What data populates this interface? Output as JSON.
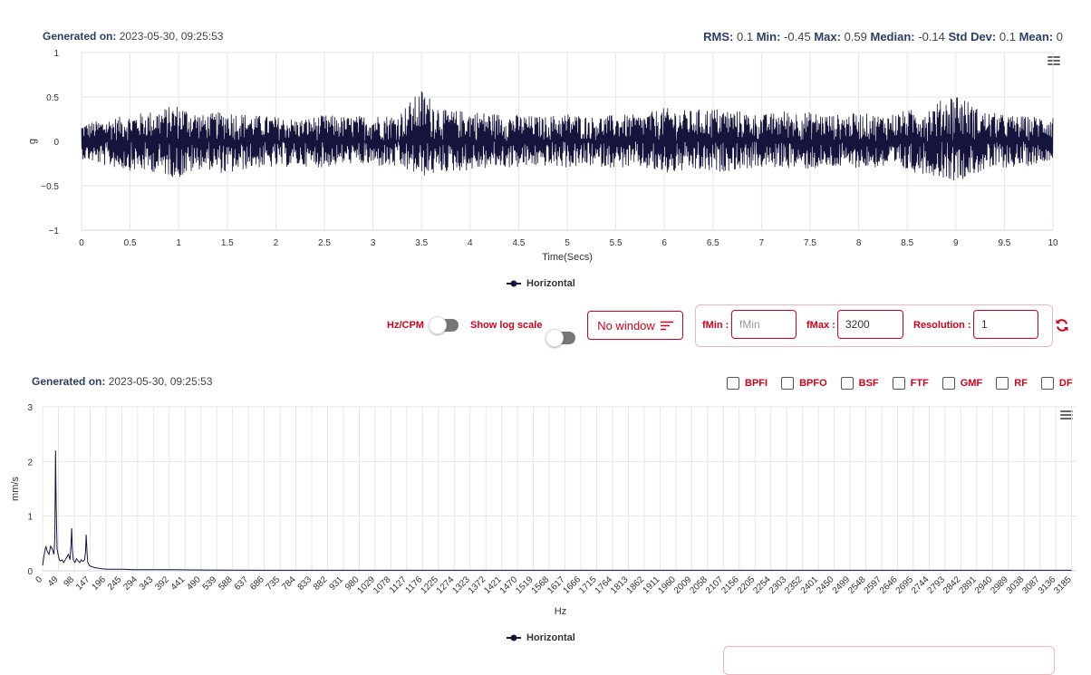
{
  "top": {
    "generated_label": "Generated on:",
    "generated_value": "2023-05-30, 09:25:53",
    "stats": [
      {
        "label": "RMS:",
        "value": "0.1"
      },
      {
        "label": "Min:",
        "value": "-0.45"
      },
      {
        "label": "Max:",
        "value": "0.59"
      },
      {
        "label": "Median:",
        "value": "-0.14"
      },
      {
        "label": "Std Dev:",
        "value": "0.1"
      },
      {
        "label": "Mean:",
        "value": "0"
      }
    ],
    "legend": "Horizontal"
  },
  "controls": {
    "hzcpm_label": "Hz/CPM",
    "log_label": "Show log scale",
    "window_label": "No window",
    "fmin_label": "fMin :",
    "fmin_value": "",
    "fmin_placeholder": "fMin",
    "fmax_label": "fMax :",
    "fmax_value": "3200",
    "resolution_label": "Resolution :",
    "resolution_value": "1"
  },
  "bottom": {
    "generated_label": "Generated on:",
    "generated_value": "2023-05-30, 09:25:53",
    "checkboxes": [
      "BPFI",
      "BPFO",
      "BSF",
      "FTF",
      "GMF",
      "RF",
      "DF"
    ],
    "legend": "Horizontal"
  },
  "colors": {
    "series": "#14143c",
    "accent": "#d0021b",
    "title": "#2c3e66",
    "grid": "#e6e6e6"
  },
  "icons": {
    "menu": "hamburger-menu-icon",
    "refresh": "refresh-icon",
    "window": "filter-lines-icon"
  },
  "chart_data": [
    {
      "type": "line",
      "title": "",
      "xlabel": "Time(Secs)",
      "ylabel": "g",
      "xlim": [
        0,
        10
      ],
      "ylim": [
        -1,
        1
      ],
      "xticks": [
        "0",
        "0.5",
        "1",
        "1.5",
        "2",
        "2.5",
        "3",
        "3.5",
        "4",
        "4.5",
        "5",
        "5.5",
        "6",
        "6.5",
        "7",
        "7.5",
        "8",
        "8.5",
        "9",
        "9.5",
        "10"
      ],
      "yticks": [
        "1",
        "0.5",
        "0",
        "−0.5",
        "−1"
      ],
      "series": [
        {
          "name": "Horizontal",
          "x": [
            0,
            0.25,
            0.5,
            0.75,
            1.0,
            1.25,
            1.5,
            1.75,
            2.0,
            2.25,
            2.5,
            2.75,
            3.0,
            3.25,
            3.5,
            3.75,
            4.0,
            4.25,
            4.5,
            4.75,
            5.0,
            5.25,
            5.5,
            5.75,
            6.0,
            6.25,
            6.5,
            6.75,
            7.0,
            7.25,
            7.5,
            7.75,
            8.0,
            8.25,
            8.5,
            8.75,
            9.0,
            9.25,
            9.5,
            9.75,
            10.0
          ],
          "upper": [
            0.2,
            0.25,
            0.3,
            0.35,
            0.42,
            0.3,
            0.35,
            0.3,
            0.28,
            0.25,
            0.3,
            0.28,
            0.3,
            0.3,
            0.59,
            0.35,
            0.35,
            0.32,
            0.3,
            0.28,
            0.32,
            0.28,
            0.3,
            0.3,
            0.38,
            0.35,
            0.38,
            0.35,
            0.3,
            0.35,
            0.33,
            0.3,
            0.32,
            0.3,
            0.35,
            0.4,
            0.57,
            0.35,
            0.3,
            0.28,
            0.3
          ],
          "lower": [
            -0.2,
            -0.28,
            -0.33,
            -0.35,
            -0.42,
            -0.3,
            -0.38,
            -0.3,
            -0.3,
            -0.28,
            -0.3,
            -0.25,
            -0.28,
            -0.3,
            -0.4,
            -0.35,
            -0.33,
            -0.3,
            -0.3,
            -0.28,
            -0.3,
            -0.28,
            -0.3,
            -0.3,
            -0.38,
            -0.33,
            -0.36,
            -0.32,
            -0.3,
            -0.3,
            -0.32,
            -0.3,
            -0.3,
            -0.3,
            -0.34,
            -0.38,
            -0.45,
            -0.35,
            -0.3,
            -0.28,
            -0.2
          ]
        }
      ]
    },
    {
      "type": "line",
      "title": "",
      "xlabel": "Hz",
      "ylabel": "mm/s",
      "xlim": [
        0,
        3200
      ],
      "ylim": [
        0,
        3
      ],
      "xticks": [
        "0",
        "49",
        "98",
        "147",
        "196",
        "245",
        "294",
        "343",
        "392",
        "441",
        "490",
        "539",
        "588",
        "637",
        "686",
        "735",
        "784",
        "833",
        "882",
        "931",
        "980",
        "1029",
        "1078",
        "1127",
        "1176",
        "1225",
        "1274",
        "1323",
        "1372",
        "1421",
        "1470",
        "1519",
        "1568",
        "1617",
        "1666",
        "1715",
        "1764",
        "1813",
        "1862",
        "1911",
        "1960",
        "2009",
        "2058",
        "2107",
        "2156",
        "2205",
        "2254",
        "2303",
        "2352",
        "2401",
        "2450",
        "2499",
        "2548",
        "2597",
        "2646",
        "2695",
        "2744",
        "2793",
        "2842",
        "2891",
        "2940",
        "2989",
        "3038",
        "3087",
        "3136",
        "3185"
      ],
      "yticks": [
        "3",
        "2",
        "1",
        "0"
      ],
      "series": [
        {
          "name": "Horizontal",
          "x": [
            0,
            5,
            10,
            15,
            20,
            25,
            30,
            35,
            38,
            40,
            42,
            45,
            48,
            50,
            52,
            55,
            60,
            65,
            70,
            75,
            80,
            85,
            88,
            90,
            92,
            95,
            100,
            105,
            110,
            115,
            120,
            125,
            130,
            133,
            135,
            138,
            140,
            145,
            150,
            160,
            170,
            180,
            200,
            220,
            250,
            280,
            300,
            350,
            400,
            500,
            700,
            1000,
            1500,
            2000,
            2500,
            3000,
            3185
          ],
          "values": [
            0.1,
            0.3,
            0.45,
            0.35,
            0.3,
            0.45,
            0.4,
            0.3,
            0.6,
            2.2,
            1.2,
            0.4,
            0.3,
            0.25,
            0.2,
            0.18,
            0.2,
            0.15,
            0.2,
            0.25,
            0.3,
            0.2,
            0.5,
            0.78,
            0.4,
            0.2,
            0.15,
            0.22,
            0.18,
            0.15,
            0.2,
            0.17,
            0.2,
            0.35,
            0.66,
            0.3,
            0.15,
            0.1,
            0.08,
            0.06,
            0.05,
            0.04,
            0.03,
            0.03,
            0.03,
            0.02,
            0.02,
            0.02,
            0.02,
            0.015,
            0.01,
            0.01,
            0.01,
            0.01,
            0.01,
            0.01,
            0.01
          ]
        }
      ]
    }
  ]
}
